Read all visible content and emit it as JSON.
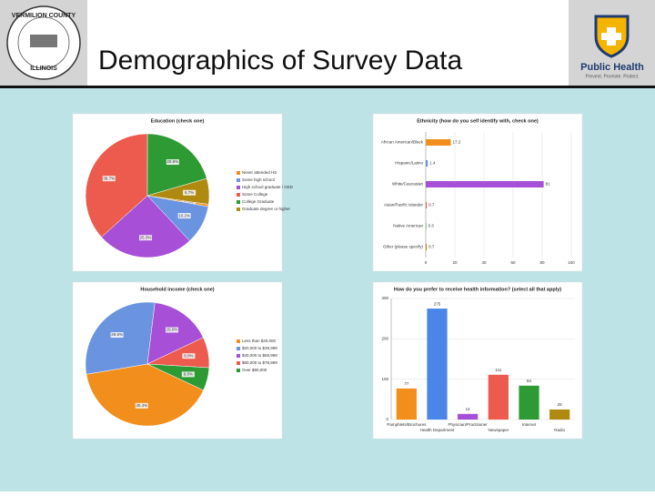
{
  "header": {
    "title": "Demographics of Survey Data",
    "left_logo": [
      "VERMILION COUNTY",
      "ILLINOIS"
    ],
    "right_logo": "Public Health",
    "right_tagline": "Prevent. Promote. Protect."
  },
  "chart_data": [
    {
      "type": "pie",
      "title": "Education (check one)",
      "categories": [
        "Never attended HS",
        "Some high school",
        "High school graduate / GED",
        "Some College",
        "College Graduate",
        "Graduate degree or higher"
      ],
      "values": [
        0.6,
        10.2,
        25.3,
        36.7,
        20.5,
        6.7
      ],
      "value_labels": [
        "0.6%",
        "10.2%",
        "25.3%",
        "36.7%",
        "20.5%",
        "6.7%"
      ],
      "colors": [
        "#f28e1c",
        "#6a94e0",
        "#a74fd6",
        "#ec5b4d",
        "#2e9a33",
        "#b08a10"
      ],
      "legend": "right"
    },
    {
      "type": "hbar",
      "title": "Ethnicity (how do you self identify with, check one)",
      "categories": [
        "African American/Black",
        "Hispanic/Latino",
        "White/Caucasian",
        "Asian/Pacific Islander",
        "Native American",
        "Other (please specify)"
      ],
      "values": [
        17.2,
        1.4,
        81.0,
        0.7,
        0.3,
        0.7
      ],
      "colors": [
        "#f28e1c",
        "#6a94e0",
        "#a74fd6",
        "#ec5b4d",
        "#2e9a33",
        "#b08a10"
      ],
      "xlim": [
        0,
        100
      ],
      "xticks": [
        0,
        20,
        40,
        60,
        80,
        100
      ],
      "grid": true
    },
    {
      "type": "pie",
      "title": "Household income (check one)",
      "categories": [
        "Less than $20,000",
        "$20,000 to $39,999",
        "$40,000 to $59,999",
        "$60,000 to $79,999",
        "Over $80,000"
      ],
      "values": [
        40.4,
        29.6,
        16.0,
        8.0,
        6.0
      ],
      "value_labels": [
        "40.4%",
        "29.6%",
        "16.0%",
        "8.0%",
        "6.0%"
      ],
      "colors": [
        "#f28e1c",
        "#6a94e0",
        "#a74fd6",
        "#ec5b4d",
        "#2e9a33"
      ],
      "legend": "right"
    },
    {
      "type": "bar",
      "title": "How do you prefer to receive health information? (select all that apply)",
      "categories": [
        "Pamphlets/Brochures",
        "Health Department",
        "Physician/Practitioner",
        "Newspaper",
        "Internet",
        "Radio"
      ],
      "values": [
        77,
        275,
        14,
        111,
        84,
        25
      ],
      "colors": [
        "#f28e1c",
        "#4a86e8",
        "#a74fd6",
        "#ec5b4d",
        "#2e9a33",
        "#b08a10"
      ],
      "ylim": [
        0,
        300
      ],
      "yticks": [
        0,
        100,
        200,
        300
      ],
      "grid": true
    }
  ]
}
